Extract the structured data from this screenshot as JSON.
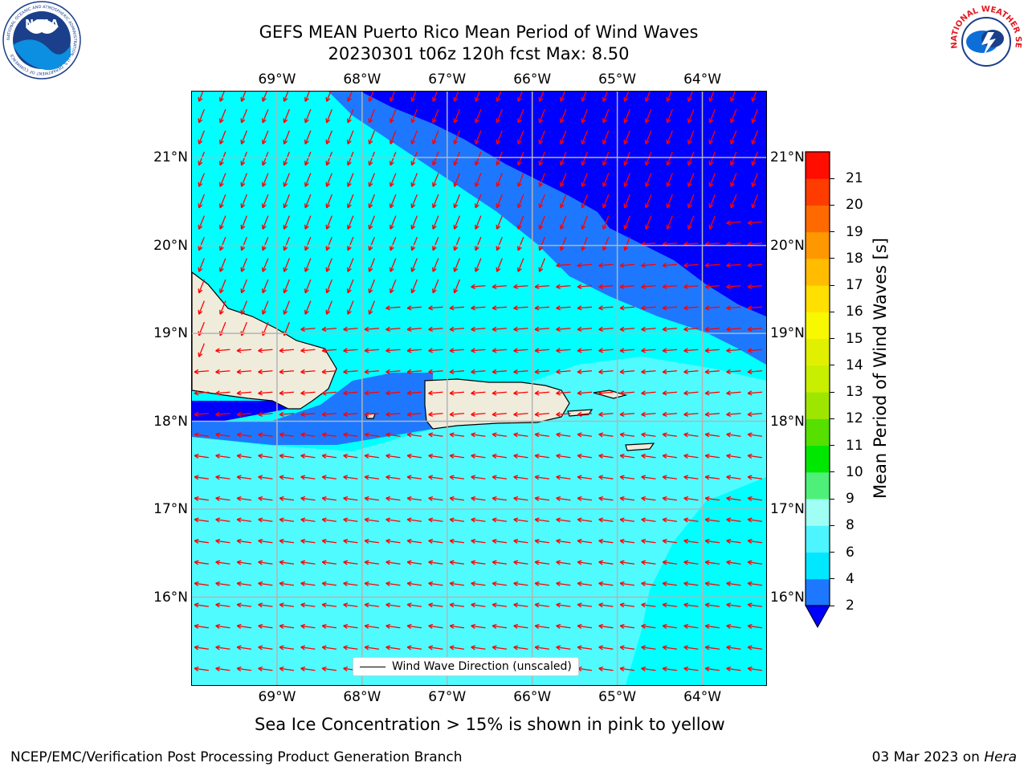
{
  "title": {
    "line1": "GEFS MEAN Puerto Rico Mean Period of Wind Waves",
    "line2": "20230301 t06z 120h fcst   Max: 8.50"
  },
  "logos": {
    "left": "NOAA",
    "left_ring": "NATIONAL OCEANIC AND ATMOSPHERIC ADMINISTRATION · U.S. DEPARTMENT OF COMMERCE",
    "right_ring": "NATIONAL WEATHER SERVICE"
  },
  "axes": {
    "lon_labels": [
      "69°W",
      "68°W",
      "67°W",
      "66°W",
      "65°W",
      "64°W"
    ],
    "lon_values": [
      -69,
      -68,
      -67,
      -66,
      -65,
      -64
    ],
    "lat_labels": [
      "21°N",
      "20°N",
      "19°N",
      "18°N",
      "17°N",
      "16°N"
    ],
    "lat_values": [
      21,
      20,
      19,
      18,
      17,
      16
    ],
    "lon_range": [
      -70.0,
      -63.25
    ],
    "lat_range": [
      15.0,
      21.75
    ]
  },
  "legend": {
    "label": "Wind Wave Direction (unscaled)"
  },
  "colorbar": {
    "label": "Mean Period of Wind Waves [s]",
    "ticks": [
      "2",
      "4",
      "6",
      "8",
      "9",
      "10",
      "11",
      "12",
      "13",
      "14",
      "15",
      "16",
      "17",
      "18",
      "19",
      "20",
      "21"
    ],
    "colors": [
      "#1e78ff",
      "#00e8ff",
      "#4cf5ff",
      "#a0fff5",
      "#4ef07a",
      "#00e800",
      "#55e000",
      "#9ee600",
      "#c8ee00",
      "#e0f000",
      "#f8f800",
      "#ffe000",
      "#ffbc00",
      "#ff9800",
      "#ff6a00",
      "#ff3c00",
      "#ff0e00"
    ],
    "under_color": "#0000ff"
  },
  "map_colors": {
    "level_2_4": "#1e78ff",
    "level_lt2": "#0000ff",
    "level_4_6": "#00ffff",
    "level_6_8": "#50fbff",
    "land": "#f0ecdc",
    "arrow": "#ff0000",
    "grid": "#b4b4b4"
  },
  "caption": "Sea Ice Concentration > 15% is shown in pink to yellow",
  "footer": {
    "left": "NCEP/EMC/Verification Post Processing Product Generation Branch",
    "date": "03 Mar 2023 on ",
    "host": "Hera"
  }
}
